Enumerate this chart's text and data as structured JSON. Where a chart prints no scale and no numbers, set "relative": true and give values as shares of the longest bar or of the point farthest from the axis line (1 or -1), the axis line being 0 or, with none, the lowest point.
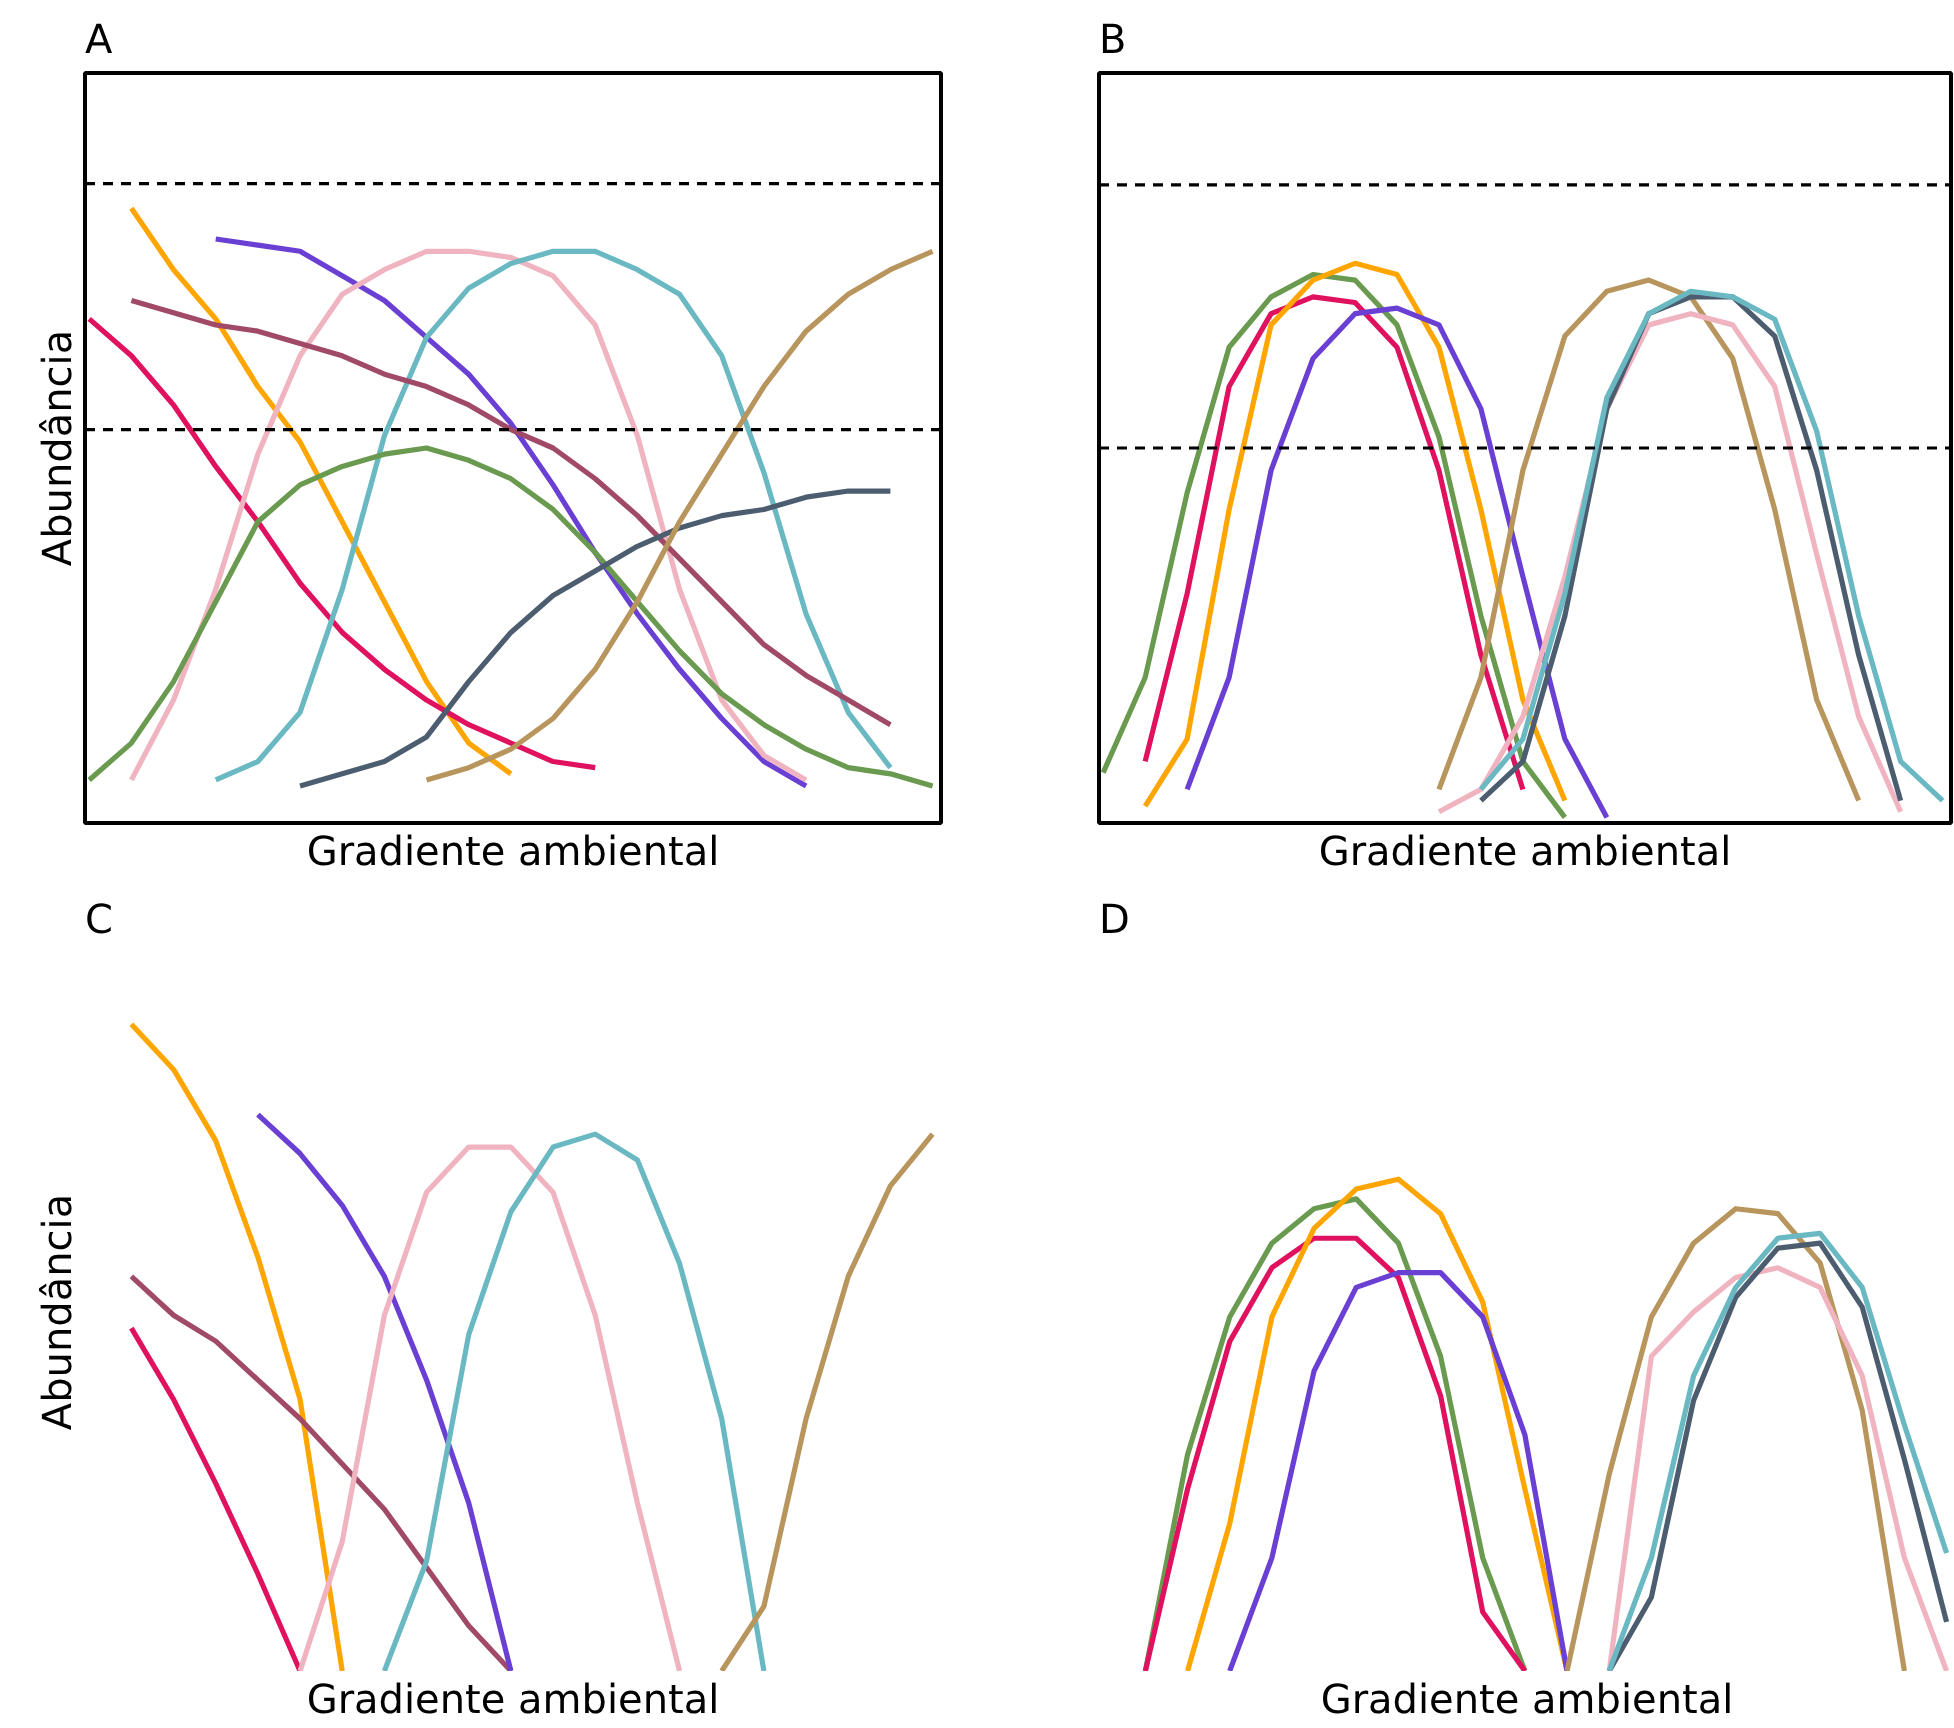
{
  "chart_data": [
    {
      "type": "line",
      "title": "A",
      "xlabel": "Gradiente ambiental",
      "ylabel": "Abundância",
      "relative": true,
      "categories": [
        null,
        null,
        null,
        null,
        null,
        null,
        null,
        null,
        null,
        null,
        null,
        null,
        null,
        null,
        null,
        null,
        null,
        null,
        null,
        null,
        null
      ],
      "ref_lines": [
        {
          "axis": "y",
          "value": 1.04,
          "color": "#000000",
          "line_style": "dashed"
        },
        {
          "axis": "y",
          "value": 0.64,
          "color": "#000000",
          "line_style": "dashed"
        }
      ],
      "series": [
        {
          "color": "#ffa500",
          "values": [
            null,
            1.0,
            0.9,
            0.82,
            0.71,
            0.62,
            0.49,
            0.36,
            0.23,
            0.13,
            0.08,
            null,
            null,
            null,
            null,
            null,
            null,
            null,
            null,
            null,
            null
          ]
        },
        {
          "color": "#e0115f",
          "values": [
            0.82,
            0.76,
            0.68,
            0.58,
            0.49,
            0.39,
            0.31,
            0.25,
            0.2,
            0.16,
            0.13,
            0.1,
            0.09,
            null,
            null,
            null,
            null,
            null,
            null,
            null,
            null
          ]
        },
        {
          "color": "#6a3fd4",
          "values": [
            null,
            null,
            null,
            0.95,
            0.94,
            0.93,
            0.89,
            0.85,
            0.79,
            0.73,
            0.65,
            0.55,
            0.44,
            0.34,
            0.25,
            0.17,
            0.1,
            0.06,
            null,
            null,
            null
          ]
        },
        {
          "color": "#f0b4c0",
          "values": [
            null,
            0.07,
            0.2,
            0.38,
            0.6,
            0.76,
            0.86,
            0.9,
            0.93,
            0.93,
            0.92,
            0.89,
            0.81,
            0.63,
            0.38,
            0.2,
            0.11,
            0.07,
            null,
            null,
            null
          ]
        },
        {
          "color": "#6ab8c2",
          "values": [
            null,
            null,
            null,
            0.07,
            0.1,
            0.18,
            0.38,
            0.63,
            0.79,
            0.87,
            0.91,
            0.93,
            0.93,
            0.9,
            0.86,
            0.76,
            0.57,
            0.34,
            0.18,
            0.09,
            null
          ]
        },
        {
          "color": "#6a9a50",
          "values": [
            0.07,
            0.13,
            0.23,
            0.36,
            0.49,
            0.55,
            0.58,
            0.6,
            0.61,
            0.59,
            0.56,
            0.51,
            0.44,
            0.36,
            0.28,
            0.21,
            0.16,
            0.12,
            0.09,
            0.08,
            0.06
          ]
        },
        {
          "color": "#a04a68",
          "values": [
            null,
            0.85,
            0.83,
            0.81,
            0.8,
            0.78,
            0.76,
            0.73,
            0.71,
            0.68,
            0.64,
            0.61,
            0.56,
            0.5,
            0.43,
            0.36,
            0.29,
            0.24,
            0.2,
            0.16,
            null
          ]
        },
        {
          "color": "#4d5d70",
          "values": [
            null,
            null,
            null,
            null,
            null,
            0.06,
            0.08,
            0.1,
            0.14,
            0.23,
            0.31,
            0.37,
            0.41,
            0.45,
            0.48,
            0.5,
            0.51,
            0.53,
            0.54,
            0.54,
            null
          ]
        },
        {
          "color": "#b8955c",
          "values": [
            null,
            null,
            null,
            null,
            null,
            null,
            null,
            null,
            0.07,
            0.09,
            0.12,
            0.17,
            0.25,
            0.36,
            0.49,
            0.6,
            0.71,
            0.8,
            0.86,
            0.9,
            0.93
          ]
        }
      ]
    },
    {
      "type": "line",
      "title": "B",
      "xlabel": "Gradiente ambiental",
      "relative": true,
      "categories": [
        null,
        null,
        null,
        null,
        null,
        null,
        null,
        null,
        null,
        null,
        null,
        null,
        null,
        null,
        null,
        null,
        null,
        null,
        null,
        null,
        null
      ],
      "ref_lines": [
        {
          "axis": "y",
          "value": 1.14,
          "color": "#000000",
          "line_style": "dashed"
        },
        {
          "axis": "y",
          "value": 0.67,
          "color": "#000000",
          "line_style": "dashed"
        }
      ],
      "series": [
        {
          "color": "#6a9a50",
          "values": [
            0.09,
            0.26,
            0.59,
            0.85,
            0.94,
            0.98,
            0.97,
            0.89,
            0.69,
            0.37,
            0.11,
            0.01,
            null,
            null,
            null,
            null,
            null,
            null,
            null,
            null,
            null
          ]
        },
        {
          "color": "#e0115f",
          "values": [
            null,
            0.11,
            0.41,
            0.78,
            0.91,
            0.94,
            0.93,
            0.85,
            0.63,
            0.3,
            0.06,
            null,
            null,
            null,
            null,
            null,
            null,
            null,
            null,
            null,
            null
          ]
        },
        {
          "color": "#ffa500",
          "values": [
            null,
            0.03,
            0.15,
            0.56,
            0.89,
            0.97,
            1.0,
            0.98,
            0.85,
            0.56,
            0.22,
            0.04,
            null,
            null,
            null,
            null,
            null,
            null,
            null,
            null,
            null
          ]
        },
        {
          "color": "#6a3fd4",
          "values": [
            null,
            null,
            0.06,
            0.26,
            0.63,
            0.83,
            0.91,
            0.92,
            0.89,
            0.74,
            0.44,
            0.15,
            0.01,
            null,
            null,
            null,
            null,
            null,
            null,
            null,
            null
          ]
        },
        {
          "color": "#b8955c",
          "values": [
            null,
            null,
            null,
            null,
            null,
            null,
            null,
            null,
            0.06,
            0.26,
            0.63,
            0.87,
            0.95,
            0.97,
            0.94,
            0.83,
            0.56,
            0.22,
            0.04,
            null,
            null
          ]
        },
        {
          "color": "#f0b4c0",
          "values": [
            null,
            null,
            null,
            null,
            null,
            null,
            null,
            null,
            0.02,
            0.06,
            0.19,
            0.44,
            0.74,
            0.89,
            0.91,
            0.89,
            0.78,
            0.48,
            0.19,
            0.02,
            null
          ]
        },
        {
          "color": "#4d5d70",
          "values": [
            null,
            null,
            null,
            null,
            null,
            null,
            null,
            null,
            null,
            0.04,
            0.11,
            0.37,
            0.74,
            0.91,
            0.94,
            0.94,
            0.87,
            0.63,
            0.3,
            0.04,
            null
          ]
        },
        {
          "color": "#6ab8c2",
          "values": [
            null,
            null,
            null,
            null,
            null,
            null,
            null,
            null,
            null,
            0.06,
            0.15,
            0.41,
            0.76,
            0.91,
            0.95,
            0.94,
            0.9,
            0.7,
            0.37,
            0.11,
            0.04
          ]
        }
      ]
    },
    {
      "type": "line",
      "title": "C",
      "xlabel": "Gradiente ambiental",
      "ylabel": "Abundância",
      "relative": true,
      "categories": [
        null,
        null,
        null,
        null,
        null,
        null,
        null,
        null,
        null,
        null,
        null,
        null,
        null,
        null,
        null,
        null,
        null,
        null,
        null,
        null,
        null
      ],
      "series": [
        {
          "color": "#ffa500",
          "values": [
            null,
            1.0,
            0.93,
            0.82,
            0.64,
            0.42,
            0,
            null,
            null,
            null,
            null,
            null,
            null,
            null,
            null,
            null,
            null,
            null,
            null,
            null,
            null
          ]
        },
        {
          "color": "#e0115f",
          "values": [
            null,
            0.53,
            0.42,
            0.29,
            0.15,
            0,
            null,
            null,
            null,
            null,
            null,
            null,
            null,
            null,
            null,
            null,
            null,
            null,
            null,
            null,
            null
          ]
        },
        {
          "color": "#a04a68",
          "values": [
            null,
            0.61,
            0.55,
            0.51,
            0.45,
            0.39,
            0.32,
            0.25,
            0.16,
            0.07,
            0,
            null,
            null,
            null,
            null,
            null,
            null,
            null,
            null,
            null,
            null
          ]
        },
        {
          "color": "#6a3fd4",
          "values": [
            null,
            null,
            null,
            null,
            0.86,
            0.8,
            0.72,
            0.61,
            0.45,
            0.26,
            0,
            null,
            null,
            null,
            null,
            null,
            null,
            null,
            null,
            null,
            null
          ]
        },
        {
          "color": "#f0b4c0",
          "values": [
            null,
            null,
            null,
            null,
            null,
            0,
            0.2,
            0.55,
            0.74,
            0.81,
            0.81,
            0.74,
            0.55,
            0.26,
            0,
            null,
            null,
            null,
            null,
            null,
            null
          ]
        },
        {
          "color": "#6ab8c2",
          "values": [
            null,
            null,
            null,
            null,
            null,
            null,
            null,
            0,
            0.17,
            0.52,
            0.71,
            0.81,
            0.83,
            0.79,
            0.63,
            0.39,
            0,
            null,
            null,
            null,
            null
          ]
        },
        {
          "color": "#b8955c",
          "values": [
            null,
            null,
            null,
            null,
            null,
            null,
            null,
            null,
            null,
            null,
            null,
            null,
            null,
            null,
            null,
            0,
            0.1,
            0.39,
            0.61,
            0.75,
            0.83
          ]
        }
      ]
    },
    {
      "type": "line",
      "title": "D",
      "xlabel": "Gradiente ambiental",
      "relative": true,
      "categories": [
        null,
        null,
        null,
        null,
        null,
        null,
        null,
        null,
        null,
        null,
        null,
        null,
        null,
        null,
        null,
        null,
        null,
        null,
        null,
        null,
        null
      ],
      "series": [
        {
          "color": "#6a9a50",
          "values": [
            null,
            0,
            0.44,
            0.72,
            0.87,
            0.94,
            0.96,
            0.87,
            0.64,
            0.23,
            0,
            null,
            null,
            null,
            null,
            null,
            null,
            null,
            null,
            null,
            null
          ]
        },
        {
          "color": "#e0115f",
          "values": [
            null,
            0,
            0.37,
            0.67,
            0.82,
            0.88,
            0.88,
            0.8,
            0.56,
            0.12,
            0,
            null,
            null,
            null,
            null,
            null,
            null,
            null,
            null,
            null,
            null
          ]
        },
        {
          "color": "#ffa500",
          "values": [
            null,
            null,
            0,
            0.3,
            0.72,
            0.9,
            0.98,
            1.0,
            0.93,
            0.75,
            0.37,
            0,
            null,
            null,
            null,
            null,
            null,
            null,
            null,
            null,
            null
          ]
        },
        {
          "color": "#6a3fd4",
          "values": [
            null,
            null,
            null,
            0,
            0.23,
            0.61,
            0.78,
            0.81,
            0.81,
            0.72,
            0.48,
            0,
            null,
            null,
            null,
            null,
            null,
            null,
            null,
            null,
            null
          ]
        },
        {
          "color": "#b8955c",
          "values": [
            null,
            null,
            null,
            null,
            null,
            null,
            null,
            null,
            null,
            null,
            null,
            0,
            0.4,
            0.72,
            0.87,
            0.94,
            0.93,
            0.83,
            0.53,
            0,
            null
          ]
        },
        {
          "color": "#f0b4c0",
          "values": [
            null,
            null,
            null,
            null,
            null,
            null,
            null,
            null,
            null,
            null,
            null,
            null,
            0,
            0.64,
            0.73,
            0.8,
            0.82,
            0.78,
            0.6,
            0.23,
            0
          ]
        },
        {
          "color": "#4d5d70",
          "values": [
            null,
            null,
            null,
            null,
            null,
            null,
            null,
            null,
            null,
            null,
            null,
            null,
            0,
            0.15,
            0.55,
            0.76,
            0.86,
            0.87,
            0.74,
            0.43,
            0.1
          ]
        },
        {
          "color": "#6ab8c2",
          "values": [
            null,
            null,
            null,
            null,
            null,
            null,
            null,
            null,
            null,
            null,
            null,
            null,
            0,
            0.23,
            0.6,
            0.78,
            0.88,
            0.89,
            0.78,
            0.5,
            0.24
          ]
        }
      ]
    }
  ]
}
